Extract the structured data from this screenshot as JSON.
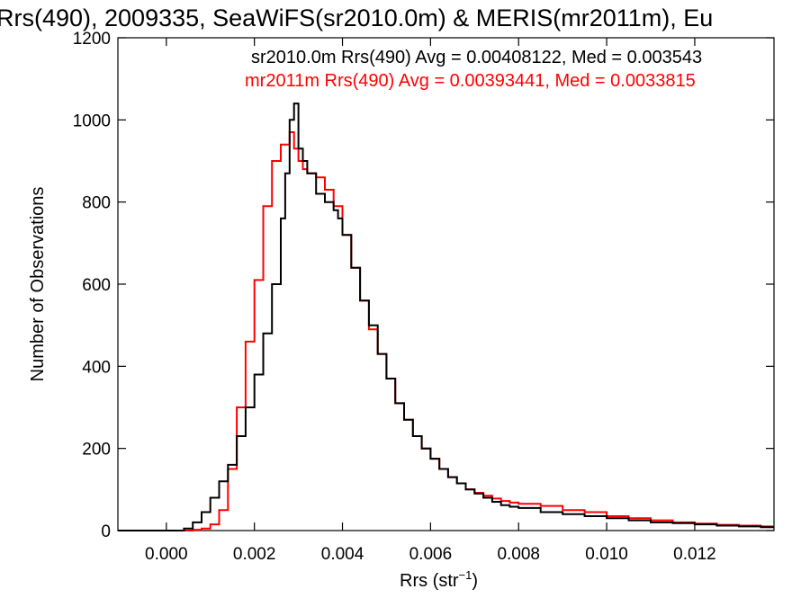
{
  "chart_data": {
    "type": "line",
    "step": true,
    "title": "Rrs(490), 2009335, SeaWiFS(sr2010.0m) & MERIS(mr2011m), Eu",
    "xlabel_main": "Rrs (str",
    "xlabel_sup": "−1",
    "xlabel_close": ")",
    "ylabel": "Number of Observations",
    "xlim": [
      -0.0011,
      0.0138
    ],
    "ylim": [
      0,
      1200
    ],
    "x_ticks": [
      0.0,
      0.002,
      0.004,
      0.006,
      0.008,
      0.01,
      0.012
    ],
    "x_tick_labels": [
      "0.000",
      "0.002",
      "0.004",
      "0.006",
      "0.008",
      "0.010",
      "0.012"
    ],
    "y_ticks": [
      0,
      200,
      400,
      600,
      800,
      1000,
      1200
    ],
    "y_tick_labels": [
      "0",
      "200",
      "400",
      "600",
      "800",
      "1000",
      "1200"
    ],
    "grid": false,
    "series": [
      {
        "label": "sr2010.0m Rrs(490) Avg = 0.00408122, Med = 0.003543",
        "color": "#000000",
        "x": [
          -0.0011,
          0.0,
          0.0004,
          0.0006,
          0.0008,
          0.001,
          0.0012,
          0.0014,
          0.0016,
          0.0018,
          0.002,
          0.0022,
          0.0024,
          0.0026,
          0.0027,
          0.0028,
          0.0029,
          0.003,
          0.0031,
          0.0032,
          0.0034,
          0.0036,
          0.0038,
          0.0039,
          0.004,
          0.0042,
          0.0044,
          0.0046,
          0.0048,
          0.005,
          0.0052,
          0.0054,
          0.0056,
          0.0058,
          0.006,
          0.0062,
          0.0064,
          0.0066,
          0.0068,
          0.007,
          0.0072,
          0.0074,
          0.0076,
          0.0078,
          0.008,
          0.0085,
          0.009,
          0.0095,
          0.01,
          0.0105,
          0.011,
          0.0115,
          0.012,
          0.0125,
          0.013,
          0.0135,
          0.0138
        ],
        "y": [
          0,
          0,
          5,
          20,
          45,
          80,
          120,
          160,
          230,
          300,
          380,
          480,
          600,
          760,
          870,
          1000,
          1040,
          930,
          900,
          870,
          820,
          800,
          780,
          760,
          720,
          640,
          560,
          500,
          430,
          370,
          310,
          270,
          230,
          200,
          175,
          150,
          130,
          115,
          100,
          90,
          80,
          70,
          62,
          58,
          55,
          45,
          40,
          35,
          30,
          25,
          20,
          18,
          15,
          12,
          10,
          8,
          8
        ]
      },
      {
        "label": "mr2011m Rrs(490) Avg = 0.00393441, Med = 0.0033815",
        "color": "#ff0000",
        "x": [
          -0.0011,
          0.0,
          0.0006,
          0.0008,
          0.001,
          0.0012,
          0.0014,
          0.0016,
          0.0018,
          0.002,
          0.0022,
          0.0024,
          0.0026,
          0.0028,
          0.0029,
          0.003,
          0.0031,
          0.0032,
          0.0034,
          0.0036,
          0.0038,
          0.004,
          0.0042,
          0.0044,
          0.0046,
          0.0048,
          0.005,
          0.0052,
          0.0054,
          0.0056,
          0.0058,
          0.006,
          0.0062,
          0.0064,
          0.0066,
          0.0068,
          0.007,
          0.0072,
          0.0074,
          0.0076,
          0.0078,
          0.008,
          0.0085,
          0.009,
          0.0095,
          0.01,
          0.0105,
          0.011,
          0.0115,
          0.012,
          0.0125,
          0.013,
          0.0135,
          0.0138
        ],
        "y": [
          0,
          0,
          2,
          5,
          15,
          50,
          150,
          300,
          460,
          610,
          790,
          900,
          940,
          970,
          930,
          900,
          880,
          870,
          860,
          830,
          790,
          720,
          640,
          560,
          490,
          430,
          370,
          310,
          270,
          230,
          200,
          175,
          150,
          130,
          115,
          100,
          92,
          85,
          78,
          72,
          68,
          65,
          60,
          50,
          45,
          35,
          30,
          25,
          20,
          17,
          14,
          12,
          10,
          10
        ]
      }
    ]
  }
}
